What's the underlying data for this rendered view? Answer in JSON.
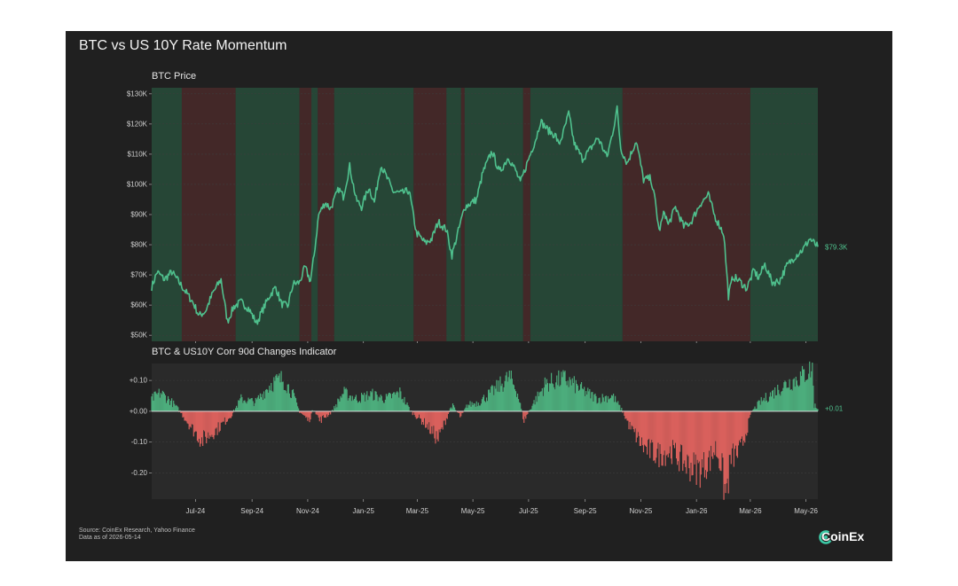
{
  "card": {
    "title": "BTC vs US 10Y Rate Momentum",
    "price_panel_title": "BTC Price",
    "indicator_panel_title": "BTC & US10Y Corr 90d Changes Indicator",
    "source": "Source: CoinEx Research, Yahoo Finance",
    "data_as_of": "Data as of 2026-05-14",
    "logo_text": "CoinEx"
  },
  "colors": {
    "background": "#202020",
    "plot_background": "#2a2a2a",
    "line": "#4fc08d",
    "positive": "#4cad7c",
    "negative": "#d9605c",
    "positive_regime": "#264636",
    "negative_regime": "#432828"
  },
  "chart_data": [
    {
      "type": "line",
      "title": "BTC Price",
      "x_range": [
        "2024-05-14",
        "2026-05-14"
      ],
      "ylim": [
        48000,
        132000
      ],
      "yticks": [
        50000,
        60000,
        70000,
        80000,
        90000,
        100000,
        110000,
        120000,
        130000
      ],
      "ytick_labels": [
        "$50K",
        "$60K",
        "$70K",
        "$80K",
        "$90K",
        "$100K",
        "$110K",
        "$120K",
        "$130K"
      ],
      "last_value_label": "$79.3K",
      "grid": true,
      "series": [
        {
          "points": [
            [
              "2024-05-14",
              66000
            ],
            [
              "2024-05-20",
              71000
            ],
            [
              "2024-05-28",
              68500
            ],
            [
              "2024-06-05",
              71000
            ],
            [
              "2024-06-12",
              68000
            ],
            [
              "2024-06-20",
              64500
            ],
            [
              "2024-06-28",
              61000
            ],
            [
              "2024-07-05",
              56500
            ],
            [
              "2024-07-12",
              58000
            ],
            [
              "2024-07-20",
              64000
            ],
            [
              "2024-07-29",
              68500
            ],
            [
              "2024-08-05",
              54500
            ],
            [
              "2024-08-12",
              59500
            ],
            [
              "2024-08-20",
              61000
            ],
            [
              "2024-08-28",
              59000
            ],
            [
              "2024-09-06",
              54000
            ],
            [
              "2024-09-12",
              58000
            ],
            [
              "2024-09-20",
              63000
            ],
            [
              "2024-09-27",
              66000
            ],
            [
              "2024-10-03",
              60500
            ],
            [
              "2024-10-10",
              59500
            ],
            [
              "2024-10-16",
              67000
            ],
            [
              "2024-10-23",
              67500
            ],
            [
              "2024-10-29",
              72500
            ],
            [
              "2024-11-04",
              68000
            ],
            [
              "2024-11-08",
              76500
            ],
            [
              "2024-11-13",
              90000
            ],
            [
              "2024-11-20",
              94000
            ],
            [
              "2024-11-26",
              92000
            ],
            [
              "2024-12-05",
              98500
            ],
            [
              "2024-12-10",
              96000
            ],
            [
              "2024-12-17",
              106000
            ],
            [
              "2024-12-24",
              95000
            ],
            [
              "2024-12-30",
              92500
            ],
            [
              "2025-01-07",
              99000
            ],
            [
              "2025-01-13",
              94000
            ],
            [
              "2025-01-20",
              106500
            ],
            [
              "2025-01-27",
              102000
            ],
            [
              "2025-02-03",
              97500
            ],
            [
              "2025-02-12",
              97000
            ],
            [
              "2025-02-20",
              98000
            ],
            [
              "2025-02-28",
              84000
            ],
            [
              "2025-03-10",
              80500
            ],
            [
              "2025-03-17",
              82000
            ],
            [
              "2025-03-24",
              87500
            ],
            [
              "2025-04-02",
              85000
            ],
            [
              "2025-04-08",
              76500
            ],
            [
              "2025-04-15",
              84500
            ],
            [
              "2025-04-22",
              92500
            ],
            [
              "2025-05-05",
              95000
            ],
            [
              "2025-05-12",
              104000
            ],
            [
              "2025-05-22",
              111000
            ],
            [
              "2025-05-30",
              104000
            ],
            [
              "2025-06-09",
              109000
            ],
            [
              "2025-06-17",
              104500
            ],
            [
              "2025-06-22",
              100500
            ],
            [
              "2025-06-30",
              107500
            ],
            [
              "2025-07-10",
              116000
            ],
            [
              "2025-07-14",
              121000
            ],
            [
              "2025-07-22",
              118000
            ],
            [
              "2025-07-31",
              116000
            ],
            [
              "2025-08-03",
              113000
            ],
            [
              "2025-08-08",
              117000
            ],
            [
              "2025-08-14",
              123500
            ],
            [
              "2025-08-20",
              113500
            ],
            [
              "2025-08-29",
              108500
            ],
            [
              "2025-09-05",
              111000
            ],
            [
              "2025-09-15",
              115500
            ],
            [
              "2025-09-25",
              109000
            ],
            [
              "2025-10-01",
              117000
            ],
            [
              "2025-10-06",
              125000
            ],
            [
              "2025-10-10",
              112000
            ],
            [
              "2025-10-17",
              107000
            ],
            [
              "2025-10-27",
              114500
            ],
            [
              "2025-11-04",
              101500
            ],
            [
              "2025-11-12",
              102000
            ],
            [
              "2025-11-17",
              94000
            ],
            [
              "2025-11-21",
              84500
            ],
            [
              "2025-11-27",
              91000
            ],
            [
              "2025-12-01",
              86500
            ],
            [
              "2025-12-09",
              92500
            ],
            [
              "2025-12-18",
              86000
            ],
            [
              "2025-12-26",
              87500
            ],
            [
              "2026-01-05",
              93500
            ],
            [
              "2026-01-14",
              96500
            ],
            [
              "2026-01-21",
              89500
            ],
            [
              "2026-01-31",
              83500
            ],
            [
              "2026-02-05",
              63000
            ],
            [
              "2026-02-10",
              69500
            ],
            [
              "2026-02-17",
              68000
            ],
            [
              "2026-02-25",
              65500
            ],
            [
              "2026-03-05",
              71500
            ],
            [
              "2026-03-10",
              69000
            ],
            [
              "2026-03-17",
              73500
            ],
            [
              "2026-03-25",
              67500
            ],
            [
              "2026-04-02",
              68000
            ],
            [
              "2026-04-10",
              73000
            ],
            [
              "2026-04-20",
              76500
            ],
            [
              "2026-04-28",
              78500
            ],
            [
              "2026-05-05",
              82000
            ],
            [
              "2026-05-14",
              79300
            ]
          ]
        }
      ],
      "regimes": [
        {
          "start": "2024-05-14",
          "end": "2024-06-16",
          "sign": "positive"
        },
        {
          "start": "2024-06-16",
          "end": "2024-08-14",
          "sign": "negative"
        },
        {
          "start": "2024-08-14",
          "end": "2024-10-23",
          "sign": "positive"
        },
        {
          "start": "2024-10-23",
          "end": "2024-11-05",
          "sign": "negative"
        },
        {
          "start": "2024-11-05",
          "end": "2024-11-12",
          "sign": "positive"
        },
        {
          "start": "2024-11-12",
          "end": "2024-11-30",
          "sign": "negative"
        },
        {
          "start": "2024-11-30",
          "end": "2025-02-25",
          "sign": "positive"
        },
        {
          "start": "2025-02-25",
          "end": "2025-04-02",
          "sign": "negative"
        },
        {
          "start": "2025-04-02",
          "end": "2025-04-18",
          "sign": "positive"
        },
        {
          "start": "2025-04-18",
          "end": "2025-04-22",
          "sign": "negative"
        },
        {
          "start": "2025-04-22",
          "end": "2025-06-25",
          "sign": "positive"
        },
        {
          "start": "2025-06-25",
          "end": "2025-07-03",
          "sign": "negative"
        },
        {
          "start": "2025-07-03",
          "end": "2025-10-12",
          "sign": "positive"
        },
        {
          "start": "2025-10-12",
          "end": "2026-03-01",
          "sign": "negative"
        },
        {
          "start": "2026-03-01",
          "end": "2026-05-14",
          "sign": "positive"
        }
      ]
    },
    {
      "type": "bar",
      "title": "BTC & US10Y Corr 90d Changes Indicator",
      "x_range": [
        "2024-05-14",
        "2026-05-14"
      ],
      "ylim": [
        -0.285,
        0.155
      ],
      "yticks": [
        0.1,
        0.0,
        -0.1,
        -0.2
      ],
      "ytick_labels": [
        "+0.10",
        "+0.00",
        "-0.10",
        "-0.20"
      ],
      "last_value_label": "+0.01",
      "xtick_dates": [
        "2024-07-01",
        "2024-09-01",
        "2024-11-01",
        "2025-01-01",
        "2025-03-01",
        "2025-05-01",
        "2025-07-01",
        "2025-09-01",
        "2025-11-01",
        "2026-01-01",
        "2026-03-01",
        "2026-05-01"
      ],
      "xtick_labels": [
        "Jul-24",
        "Sep-24",
        "Nov-24",
        "Jan-25",
        "Mar-25",
        "May-25",
        "Jul-25",
        "Sep-25",
        "Nov-25",
        "Jan-26",
        "Mar-26",
        "May-26"
      ],
      "grid": true,
      "profile": [
        [
          "2024-05-14",
          0.04
        ],
        [
          "2024-05-24",
          0.06
        ],
        [
          "2024-06-05",
          0.03
        ],
        [
          "2024-06-14",
          0.0
        ],
        [
          "2024-06-26",
          -0.05
        ],
        [
          "2024-07-08",
          -0.095
        ],
        [
          "2024-07-24",
          -0.06
        ],
        [
          "2024-08-10",
          -0.01
        ],
        [
          "2024-08-20",
          0.04
        ],
        [
          "2024-09-05",
          0.03
        ],
        [
          "2024-09-22",
          0.09
        ],
        [
          "2024-10-05",
          0.105
        ],
        [
          "2024-10-15",
          0.06
        ],
        [
          "2024-10-23",
          0.0
        ],
        [
          "2024-11-02",
          -0.03
        ],
        [
          "2024-11-08",
          0.01
        ],
        [
          "2024-11-14",
          -0.03
        ],
        [
          "2024-11-28",
          0.0
        ],
        [
          "2024-12-10",
          0.06
        ],
        [
          "2024-12-25",
          0.04
        ],
        [
          "2025-01-10",
          0.055
        ],
        [
          "2025-01-25",
          0.04
        ],
        [
          "2025-02-10",
          0.06
        ],
        [
          "2025-02-22",
          0.0
        ],
        [
          "2025-03-10",
          -0.04
        ],
        [
          "2025-03-24",
          -0.09
        ],
        [
          "2025-04-01",
          -0.03
        ],
        [
          "2025-04-08",
          0.02
        ],
        [
          "2025-04-18",
          -0.02
        ],
        [
          "2025-04-25",
          0.02
        ],
        [
          "2025-05-08",
          0.03
        ],
        [
          "2025-05-25",
          0.07
        ],
        [
          "2025-06-10",
          0.11
        ],
        [
          "2025-06-18",
          0.07
        ],
        [
          "2025-06-26",
          -0.03
        ],
        [
          "2025-07-05",
          0.02
        ],
        [
          "2025-07-20",
          0.09
        ],
        [
          "2025-08-10",
          0.105
        ],
        [
          "2025-08-28",
          0.07
        ],
        [
          "2025-09-15",
          0.04
        ],
        [
          "2025-10-01",
          0.05
        ],
        [
          "2025-10-12",
          0.0
        ],
        [
          "2025-10-20",
          -0.05
        ],
        [
          "2025-11-05",
          -0.12
        ],
        [
          "2025-11-20",
          -0.14
        ],
        [
          "2025-12-05",
          -0.13
        ],
        [
          "2025-12-20",
          -0.17
        ],
        [
          "2026-01-05",
          -0.19
        ],
        [
          "2026-01-15",
          -0.16
        ],
        [
          "2026-01-22",
          -0.12
        ],
        [
          "2026-01-28",
          -0.17
        ],
        [
          "2026-02-02",
          -0.275
        ],
        [
          "2026-02-08",
          -0.15
        ],
        [
          "2026-02-18",
          -0.13
        ],
        [
          "2026-02-26",
          -0.05
        ],
        [
          "2026-03-03",
          0.0
        ],
        [
          "2026-03-12",
          0.03
        ],
        [
          "2026-03-26",
          0.06
        ],
        [
          "2026-04-10",
          0.09
        ],
        [
          "2026-04-25",
          0.11
        ],
        [
          "2026-05-08",
          0.14
        ],
        [
          "2026-05-10",
          0.02
        ],
        [
          "2026-05-14",
          0.01
        ]
      ]
    }
  ]
}
